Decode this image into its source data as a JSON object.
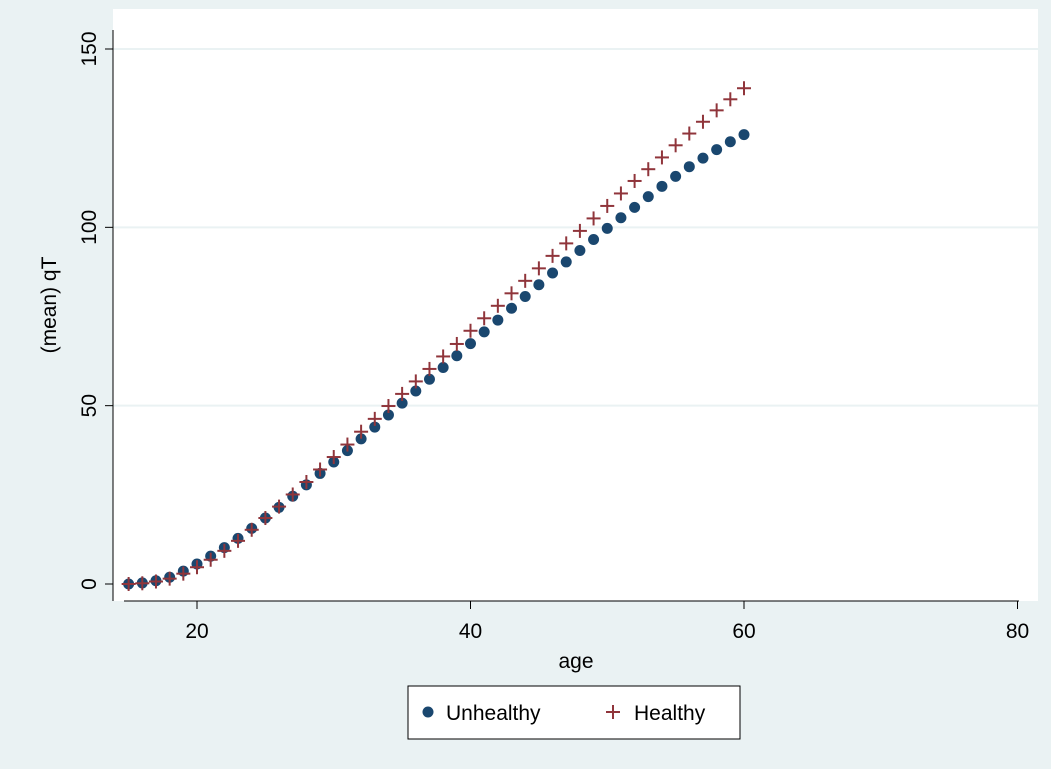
{
  "chart_data": {
    "type": "scatter",
    "xlabel": "age",
    "ylabel": "(mean) qT",
    "xlim": [
      15,
      80
    ],
    "ylim": [
      0,
      150
    ],
    "x_ticks": [
      20,
      40,
      60,
      80
    ],
    "y_ticks": [
      0,
      50,
      100,
      150
    ],
    "grid": "horizontal",
    "legend_position": "bottom",
    "series": [
      {
        "name": "Unhealthy",
        "marker": "circle",
        "color": "#1a476f",
        "x": [
          15,
          16,
          17,
          18,
          19,
          20,
          21,
          22,
          23,
          24,
          25,
          26,
          27,
          28,
          29,
          30,
          31,
          32,
          33,
          34,
          35,
          36,
          37,
          38,
          39,
          40,
          41,
          42,
          43,
          44,
          45,
          46,
          47,
          48,
          49,
          50,
          51,
          52,
          53,
          54,
          55,
          56,
          57,
          58,
          59,
          60
        ],
        "y": [
          0,
          0.3,
          0.9,
          1.9,
          3.6,
          5.6,
          7.8,
          10.2,
          12.8,
          15.6,
          18.5,
          21.5,
          24.6,
          27.8,
          31.0,
          34.2,
          37.4,
          40.7,
          44.0,
          47.4,
          50.7,
          54.1,
          57.4,
          60.7,
          64.0,
          67.4,
          70.7,
          74.0,
          77.3,
          80.6,
          83.9,
          87.2,
          90.3,
          93.5,
          96.6,
          99.7,
          102.7,
          105.6,
          108.6,
          111.5,
          114.3,
          117.0,
          119.4,
          121.8,
          124.0,
          126.0
        ]
      },
      {
        "name": "Healthy",
        "marker": "plus",
        "color": "#90353b",
        "x": [
          15,
          16,
          17,
          18,
          19,
          20,
          21,
          22,
          23,
          24,
          25,
          26,
          27,
          28,
          29,
          30,
          31,
          32,
          33,
          34,
          35,
          36,
          37,
          38,
          39,
          40,
          41,
          42,
          43,
          44,
          45,
          46,
          47,
          48,
          49,
          50,
          51,
          52,
          53,
          54,
          55,
          56,
          57,
          58,
          59,
          60
        ],
        "y": [
          0,
          0.2,
          0.7,
          1.5,
          2.9,
          4.7,
          6.8,
          9.3,
          12.1,
          15.2,
          18.5,
          21.7,
          25.1,
          28.6,
          32.1,
          35.6,
          39.1,
          42.7,
          46.3,
          49.9,
          53.3,
          56.8,
          60.3,
          63.8,
          67.3,
          71.0,
          74.5,
          78.0,
          81.5,
          85.0,
          88.5,
          92.0,
          95.5,
          99.0,
          102.5,
          106.0,
          109.5,
          113.0,
          116.3,
          119.6,
          123.0,
          126.3,
          129.6,
          132.8,
          135.9,
          139.0
        ]
      }
    ]
  }
}
